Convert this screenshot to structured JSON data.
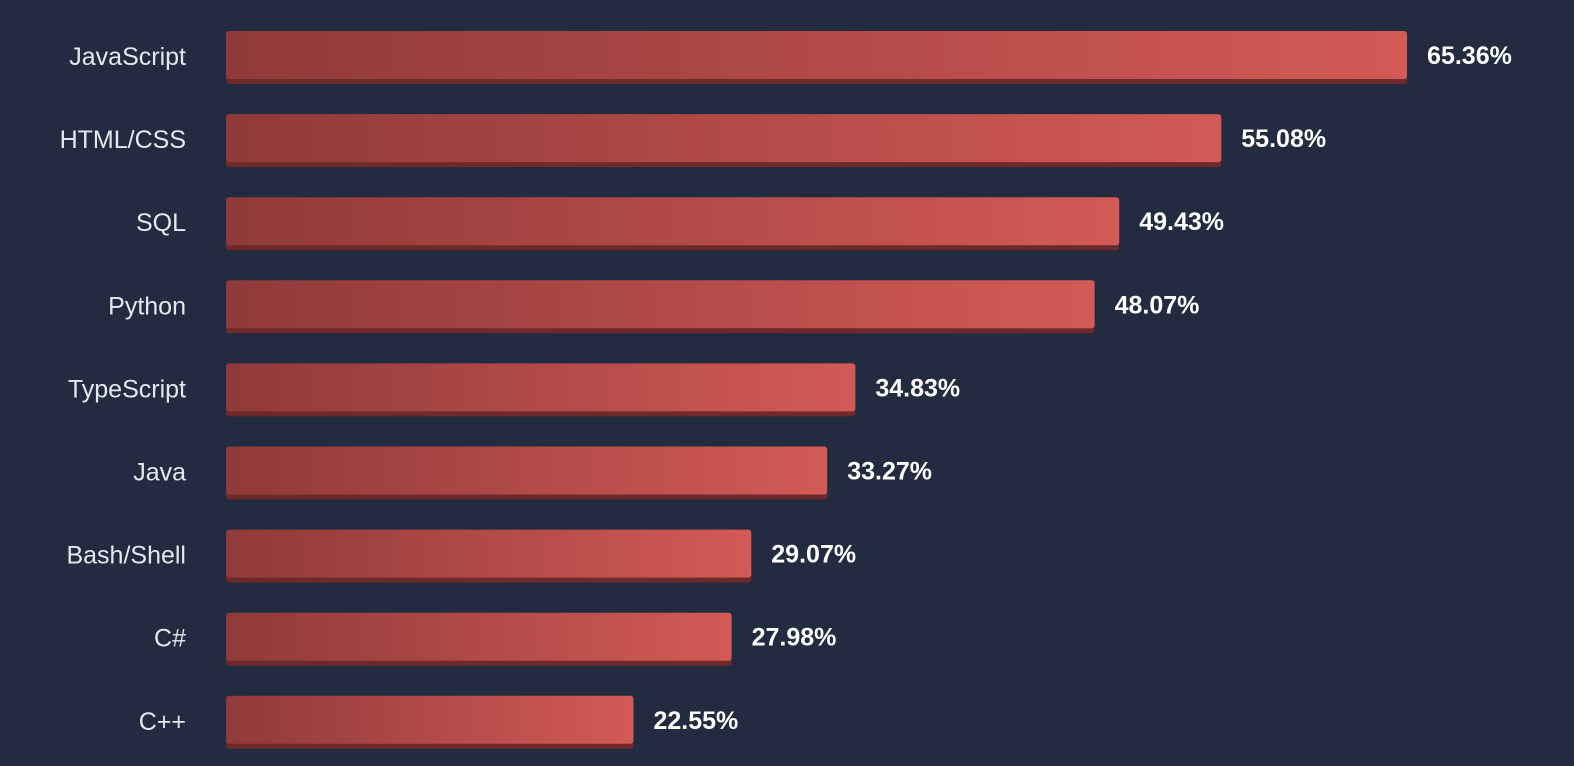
{
  "chart_data": {
    "type": "bar",
    "orientation": "horizontal",
    "categories": [
      "JavaScript",
      "HTML/CSS",
      "SQL",
      "Python",
      "TypeScript",
      "Java",
      "Bash/Shell",
      "C#",
      "C++"
    ],
    "values": [
      65.36,
      55.08,
      49.43,
      48.07,
      34.83,
      33.27,
      29.07,
      27.98,
      22.55
    ],
    "value_labels": [
      "65.36%",
      "55.08%",
      "49.43%",
      "48.07%",
      "34.83%",
      "33.27%",
      "29.07%",
      "27.98%",
      "22.55%"
    ],
    "title": "",
    "xlabel": "",
    "ylabel": "",
    "grid": false,
    "legend": "none"
  },
  "colors": {
    "background": "#232b40",
    "bar_start": "#8f3a39",
    "bar_end": "#d35a56",
    "bar_shadow": "#6e2a2a",
    "category_text": "#e6e8ee",
    "value_text": "#ffffff"
  }
}
